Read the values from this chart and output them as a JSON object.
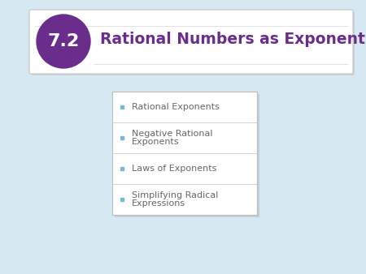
{
  "background_color": "#d6e8f2",
  "title_box_color": "#ffffff",
  "title_box_border": "#cccccc",
  "circle_color": "#6b2d8b",
  "chapter_num": "7.2",
  "chapter_num_color": "#ffffff",
  "title_text": "Rational Numbers as Exponents",
  "title_color": "#6b2d8b",
  "bullet_box_bg": "#ffffff",
  "bullet_box_border": "#bbbbbb",
  "bullet_color": "#7ab8d4",
  "separator_color": "#cccccc",
  "bullets": [
    [
      "Rational Exponents"
    ],
    [
      "Negative Rational",
      "Exponents"
    ],
    [
      "Laws of Exponents"
    ],
    [
      "Simplifying Radical",
      "Expressions"
    ]
  ],
  "bullet_text_color": "#666666",
  "bullet_fontsize": 8.0,
  "title_fontsize": 13.5,
  "num_fontsize": 16
}
